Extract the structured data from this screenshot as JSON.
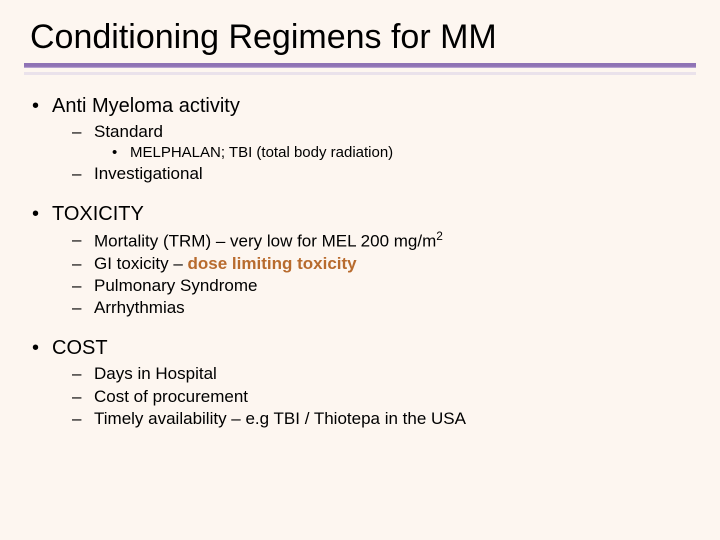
{
  "colors": {
    "background": "#fdf6f0",
    "accent": "#8f73b5",
    "accent_shadow": "#d8cde6",
    "emphasis": "#b86b2e",
    "text": "#000000"
  },
  "typography": {
    "title_fontsize": 34,
    "lvl1_fontsize": 20,
    "lvl2_fontsize": 17,
    "lvl3_fontsize": 15,
    "font_family": "Arial"
  },
  "bullets": {
    "lvl1": "•",
    "lvl2": "–",
    "lvl3": "•"
  },
  "title": "Conditioning Regimens for MM",
  "section1": {
    "label": "Anti Myeloma activity",
    "sub1": "Standard",
    "sub1_detail": "MELPHALAN; TBI (total body radiation)",
    "sub2": "Investigational"
  },
  "section2": {
    "label": "TOXICITY",
    "i1_pre": "Mortality (TRM) – very low for MEL 200 mg/m",
    "i1_sup": "2",
    "i2_pre": "GI toxicity – ",
    "i2_emph": "dose limiting toxicity",
    "i3": "Pulmonary Syndrome",
    "i4": "Arrhythmias"
  },
  "section3": {
    "label": "COST",
    "i1": "Days in Hospital",
    "i2": "Cost of procurement",
    "i3": "Timely availability – e.g TBI / Thiotepa in the USA"
  }
}
